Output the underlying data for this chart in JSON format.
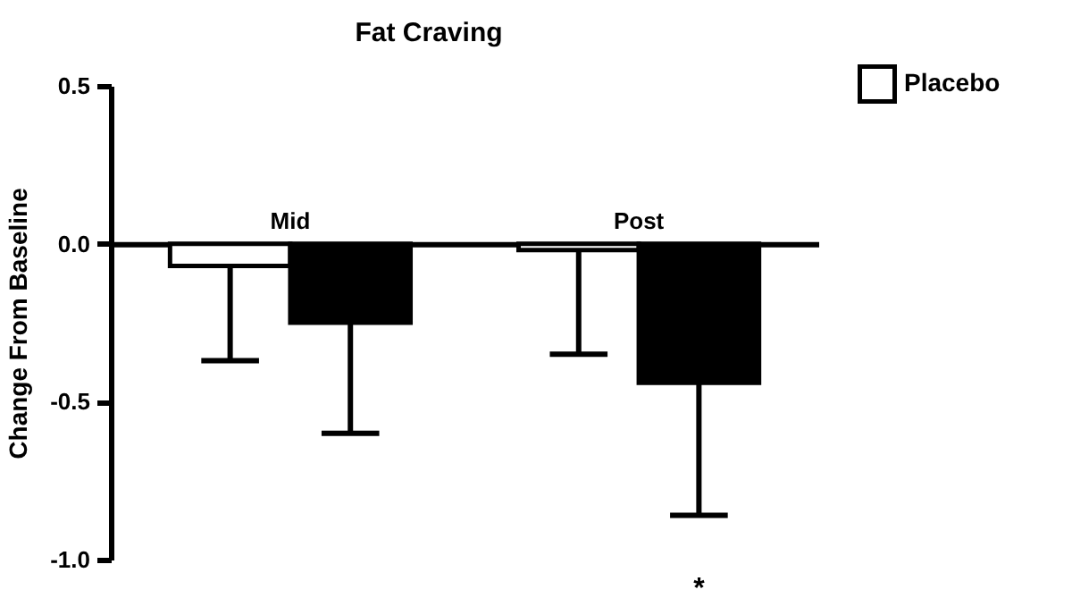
{
  "chart_data": {
    "type": "bar",
    "title": "Fat Craving",
    "ylabel": "Change From Baseline",
    "categories": [
      "Mid",
      "Post"
    ],
    "series": [
      {
        "name": "Placebo",
        "color": "#ffffff",
        "values": [
          -0.07,
          -0.02
        ],
        "errors": [
          [
            -0.37,
            -0.07
          ],
          [
            -0.35,
            -0.02
          ]
        ]
      },
      {
        "color": "#000000",
        "values": [
          -0.25,
          -0.44
        ],
        "errors": [
          [
            -0.6,
            -0.25
          ],
          [
            -0.86,
            -0.44
          ]
        ]
      }
    ],
    "ylim": [
      -1.0,
      0.5
    ],
    "yticks": [
      0.5,
      {
        "value": 0,
        "label": "0.0"
      },
      -0.5,
      {
        "value": -1,
        "label": "-1.0"
      }
    ],
    "annotations": [
      "*"
    ],
    "grid": false,
    "legend": "top right"
  }
}
